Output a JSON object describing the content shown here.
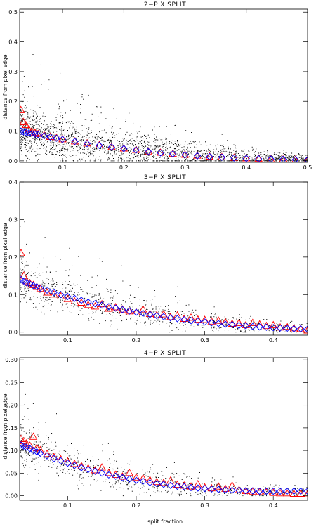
{
  "chart_data": [
    {
      "type": "scatter",
      "title": "2−PIX SPLIT",
      "xlabel": "",
      "ylabel": "distance from pixel edge",
      "xlim": [
        0.03,
        0.5
      ],
      "ylim": [
        -0.005,
        0.51
      ],
      "xticks": [
        0.1,
        0.2,
        0.3,
        0.4,
        0.5
      ],
      "xtick_labels": [
        "0.1",
        "0.2",
        "0.3",
        "0.4",
        "0.5"
      ],
      "yticks": [
        0.0,
        0.1,
        0.2,
        0.3,
        0.4,
        0.5
      ],
      "ytick_labels": [
        "0.0",
        "0.1",
        "0.2",
        "0.3",
        "0.4",
        "0.5"
      ],
      "points_description": "dense black point cloud of individual events",
      "scatter_count": 2200,
      "scatter_seed": 11,
      "scatter_spread": 0.06,
      "series": [
        {
          "marker": "triangle",
          "color": "#ff0000",
          "x": [
            0.032,
            0.036,
            0.04,
            0.045,
            0.05,
            0.055,
            0.06,
            0.07,
            0.08,
            0.09,
            0.1,
            0.12,
            0.14,
            0.16,
            0.18,
            0.2,
            0.22,
            0.24,
            0.26,
            0.28,
            0.3,
            0.32,
            0.34,
            0.36,
            0.38,
            0.4,
            0.42,
            0.44,
            0.46,
            0.48,
            0.5
          ],
          "y": [
            0.17,
            0.13,
            0.12,
            0.105,
            0.098,
            0.094,
            0.09,
            0.085,
            0.08,
            0.076,
            0.072,
            0.065,
            0.058,
            0.052,
            0.046,
            0.041,
            0.036,
            0.031,
            0.027,
            0.023,
            0.02,
            0.017,
            0.014,
            0.012,
            0.01,
            0.008,
            0.007,
            0.005,
            0.004,
            0.003,
            0.002
          ]
        },
        {
          "marker": "diamond",
          "color": "#0000ff",
          "x": [
            0.032,
            0.036,
            0.04,
            0.045,
            0.05,
            0.055,
            0.06,
            0.07,
            0.08,
            0.09,
            0.1,
            0.12,
            0.14,
            0.16,
            0.18,
            0.2,
            0.22,
            0.24,
            0.26,
            0.28,
            0.3,
            0.32,
            0.34,
            0.36,
            0.38,
            0.4,
            0.42,
            0.44,
            0.46,
            0.48,
            0.5
          ],
          "y": [
            0.1,
            0.098,
            0.096,
            0.094,
            0.092,
            0.09,
            0.088,
            0.084,
            0.08,
            0.076,
            0.072,
            0.065,
            0.058,
            0.052,
            0.046,
            0.041,
            0.036,
            0.031,
            0.027,
            0.023,
            0.02,
            0.017,
            0.014,
            0.012,
            0.01,
            0.008,
            0.007,
            0.006,
            0.005,
            0.004,
            0.003
          ]
        }
      ]
    },
    {
      "type": "scatter",
      "title": "3−PIX SPLIT",
      "xlabel": "",
      "ylabel": "distance from pixel edge",
      "xlim": [
        0.03,
        0.45
      ],
      "ylim": [
        -0.008,
        0.4
      ],
      "xticks": [
        0.1,
        0.2,
        0.3,
        0.4
      ],
      "xtick_labels": [
        "0.1",
        "0.2",
        "0.3",
        "0.4"
      ],
      "yticks": [
        0.0,
        0.1,
        0.2,
        0.3,
        0.4
      ],
      "ytick_labels": [
        "0.0",
        "0.1",
        "0.2",
        "0.3",
        "0.4"
      ],
      "points_description": "sparse black point cloud of individual events",
      "scatter_count": 900,
      "scatter_seed": 23,
      "scatter_spread": 0.045,
      "series": [
        {
          "marker": "triangle",
          "color": "#ff0000",
          "x": [
            0.032,
            0.036,
            0.04,
            0.045,
            0.05,
            0.055,
            0.06,
            0.07,
            0.08,
            0.09,
            0.1,
            0.11,
            0.12,
            0.13,
            0.14,
            0.15,
            0.16,
            0.17,
            0.18,
            0.19,
            0.2,
            0.21,
            0.22,
            0.23,
            0.24,
            0.25,
            0.26,
            0.27,
            0.28,
            0.29,
            0.3,
            0.31,
            0.32,
            0.33,
            0.34,
            0.35,
            0.36,
            0.37,
            0.38,
            0.39,
            0.4,
            0.41,
            0.42,
            0.43,
            0.44,
            0.45
          ],
          "y": [
            0.21,
            0.15,
            0.135,
            0.13,
            0.125,
            0.12,
            0.115,
            0.105,
            0.1,
            0.095,
            0.088,
            0.082,
            0.078,
            0.072,
            0.068,
            0.074,
            0.062,
            0.066,
            0.06,
            0.055,
            0.052,
            0.06,
            0.048,
            0.045,
            0.047,
            0.04,
            0.044,
            0.035,
            0.038,
            0.033,
            0.032,
            0.028,
            0.03,
            0.026,
            0.022,
            0.024,
            0.018,
            0.024,
            0.02,
            0.016,
            0.018,
            0.012,
            0.014,
            0.01,
            0.008,
            0.004
          ]
        },
        {
          "marker": "diamond",
          "color": "#0000ff",
          "x": [
            0.032,
            0.036,
            0.04,
            0.045,
            0.05,
            0.055,
            0.06,
            0.07,
            0.08,
            0.09,
            0.1,
            0.11,
            0.12,
            0.13,
            0.14,
            0.15,
            0.16,
            0.17,
            0.18,
            0.19,
            0.2,
            0.21,
            0.22,
            0.23,
            0.24,
            0.25,
            0.26,
            0.27,
            0.28,
            0.29,
            0.3,
            0.31,
            0.32,
            0.33,
            0.34,
            0.35,
            0.36,
            0.37,
            0.38,
            0.39,
            0.4,
            0.41,
            0.42,
            0.43,
            0.44,
            0.45
          ],
          "y": [
            0.14,
            0.136,
            0.132,
            0.128,
            0.124,
            0.121,
            0.118,
            0.112,
            0.106,
            0.1,
            0.095,
            0.09,
            0.085,
            0.08,
            0.076,
            0.072,
            0.068,
            0.064,
            0.06,
            0.056,
            0.053,
            0.05,
            0.047,
            0.044,
            0.041,
            0.038,
            0.036,
            0.033,
            0.031,
            0.029,
            0.027,
            0.025,
            0.023,
            0.021,
            0.02,
            0.018,
            0.017,
            0.015,
            0.014,
            0.013,
            0.012,
            0.011,
            0.01,
            0.009,
            0.009,
            0.008
          ]
        }
      ]
    },
    {
      "type": "scatter",
      "title": "4−PIX SPLIT",
      "xlabel": "split fraction",
      "ylabel": "distance from pixel edge",
      "xlim": [
        0.03,
        0.45
      ],
      "ylim": [
        -0.01,
        0.305
      ],
      "xticks": [
        0.1,
        0.2,
        0.3,
        0.4
      ],
      "xtick_labels": [
        "0.1",
        "0.2",
        "0.3",
        "0.4"
      ],
      "yticks": [
        0.0,
        0.05,
        0.1,
        0.15,
        0.2,
        0.25,
        0.3
      ],
      "ytick_labels": [
        "0.00",
        "0.05",
        "0.10",
        "0.15",
        "0.20",
        "0.25",
        "0.30"
      ],
      "points_description": "sparse black point cloud of individual events",
      "scatter_count": 800,
      "scatter_seed": 37,
      "scatter_spread": 0.035,
      "series": [
        {
          "marker": "triangle",
          "color": "#ff0000",
          "x": [
            0.032,
            0.036,
            0.04,
            0.045,
            0.05,
            0.055,
            0.06,
            0.07,
            0.08,
            0.09,
            0.1,
            0.11,
            0.12,
            0.13,
            0.14,
            0.15,
            0.16,
            0.17,
            0.18,
            0.19,
            0.2,
            0.21,
            0.22,
            0.23,
            0.24,
            0.25,
            0.26,
            0.27,
            0.28,
            0.29,
            0.3,
            0.31,
            0.32,
            0.33,
            0.34,
            0.35,
            0.36,
            0.37,
            0.38,
            0.39,
            0.4,
            0.41,
            0.42,
            0.43,
            0.44,
            0.45
          ],
          "y": [
            0.125,
            0.12,
            0.115,
            0.11,
            0.13,
            0.105,
            0.1,
            0.092,
            0.085,
            0.08,
            0.075,
            0.07,
            0.065,
            0.06,
            0.056,
            0.062,
            0.05,
            0.046,
            0.042,
            0.05,
            0.04,
            0.038,
            0.034,
            0.03,
            0.028,
            0.033,
            0.024,
            0.022,
            0.02,
            0.025,
            0.018,
            0.016,
            0.02,
            0.015,
            0.022,
            0.012,
            0.01,
            0.009,
            0.008,
            0.007,
            0.006,
            0.005,
            0.005,
            0.004,
            0.004,
            0.003
          ]
        },
        {
          "marker": "diamond",
          "color": "#0000ff",
          "x": [
            0.032,
            0.036,
            0.04,
            0.045,
            0.05,
            0.055,
            0.06,
            0.07,
            0.08,
            0.09,
            0.1,
            0.11,
            0.12,
            0.13,
            0.14,
            0.15,
            0.16,
            0.17,
            0.18,
            0.19,
            0.2,
            0.21,
            0.22,
            0.23,
            0.24,
            0.25,
            0.26,
            0.27,
            0.28,
            0.29,
            0.3,
            0.31,
            0.32,
            0.33,
            0.34,
            0.35,
            0.36,
            0.37,
            0.38,
            0.39,
            0.4,
            0.41,
            0.42,
            0.43,
            0.44,
            0.45
          ],
          "y": [
            0.112,
            0.11,
            0.107,
            0.104,
            0.1,
            0.097,
            0.094,
            0.088,
            0.082,
            0.077,
            0.072,
            0.067,
            0.062,
            0.058,
            0.054,
            0.05,
            0.046,
            0.043,
            0.04,
            0.037,
            0.034,
            0.032,
            0.029,
            0.027,
            0.025,
            0.023,
            0.021,
            0.02,
            0.018,
            0.017,
            0.016,
            0.015,
            0.014,
            0.013,
            0.012,
            0.012,
            0.011,
            0.011,
            0.01,
            0.01,
            0.01,
            0.01,
            0.01,
            0.01,
            0.01,
            0.01
          ]
        }
      ]
    }
  ]
}
